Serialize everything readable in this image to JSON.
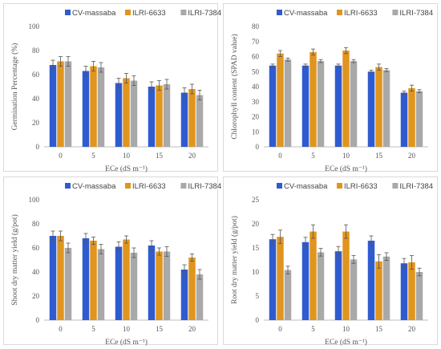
{
  "colors": {
    "CV-massaba": "#2f5bd0",
    "ILRI-6633": "#e0951e",
    "ILRI-7384": "#a9a9a9"
  },
  "chart_data": [
    {
      "type": "bar",
      "categories": [
        "0",
        "5",
        "10",
        "15",
        "20"
      ],
      "xlabel": "ECe (dS m⁻¹)",
      "ylabel": "Germination Percentage (%)",
      "ylim": [
        0,
        100
      ],
      "yticks": [
        0,
        20,
        40,
        60,
        80,
        100
      ],
      "series": [
        {
          "name": "CV-massaba",
          "values": [
            68,
            63,
            53,
            50,
            45
          ],
          "errors": [
            4,
            4,
            4,
            4,
            4
          ]
        },
        {
          "name": "ILRI-6633",
          "values": [
            71,
            67,
            57,
            51,
            48
          ],
          "errors": [
            4,
            4,
            4,
            4,
            4
          ]
        },
        {
          "name": "ILRI-7384",
          "values": [
            71,
            66,
            55,
            52,
            43
          ],
          "errors": [
            4,
            4,
            4,
            4,
            4
          ]
        }
      ]
    },
    {
      "type": "bar",
      "categories": [
        "0",
        "5",
        "10",
        "15",
        "20"
      ],
      "xlabel": "ECe (dS m⁻¹)",
      "ylabel": "Chlorophyll content (SPAD value)",
      "ylim": [
        0,
        80
      ],
      "yticks": [
        0,
        10,
        20,
        30,
        40,
        50,
        60,
        70,
        80
      ],
      "series": [
        {
          "name": "CV-massaba",
          "values": [
            54,
            54,
            54,
            50,
            36
          ],
          "errors": [
            1,
            1,
            1,
            1,
            1
          ]
        },
        {
          "name": "ILRI-6633",
          "values": [
            62,
            63,
            64,
            53,
            39
          ],
          "errors": [
            2,
            2,
            2,
            2,
            2
          ]
        },
        {
          "name": "ILRI-7384",
          "values": [
            58,
            57,
            57,
            51,
            37
          ],
          "errors": [
            1,
            1,
            1,
            1,
            1
          ]
        }
      ]
    },
    {
      "type": "bar",
      "categories": [
        "0",
        "5",
        "10",
        "15",
        "20"
      ],
      "xlabel": "ECe (dS m⁻¹)",
      "ylabel": "Shoot  dry matter yield (g/pot)",
      "ylim": [
        0,
        100
      ],
      "yticks": [
        0,
        20,
        40,
        60,
        80,
        100
      ],
      "series": [
        {
          "name": "CV-massaba",
          "values": [
            70,
            68,
            61,
            62,
            42
          ],
          "errors": [
            4,
            4,
            4,
            4,
            4
          ]
        },
        {
          "name": "ILRI-6633",
          "values": [
            70,
            66,
            67,
            57,
            52
          ],
          "errors": [
            4,
            3,
            3,
            3,
            3
          ]
        },
        {
          "name": "ILRI-7384",
          "values": [
            60,
            59,
            56,
            57,
            38
          ],
          "errors": [
            4,
            4,
            4,
            4,
            4
          ]
        }
      ]
    },
    {
      "type": "bar",
      "categories": [
        "0",
        "5",
        "10",
        "15",
        "20"
      ],
      "xlabel": "ECe (dS m⁻¹)",
      "ylabel": "Root dry matter yield (g/pot)",
      "ylim": [
        0,
        25
      ],
      "yticks": [
        0,
        5,
        10,
        15,
        20,
        25
      ],
      "series": [
        {
          "name": "CV-massaba",
          "values": [
            16.8,
            16.2,
            14.3,
            16.5,
            11.8
          ],
          "errors": [
            1.0,
            1.0,
            1.0,
            1.0,
            1.0
          ]
        },
        {
          "name": "ILRI-6633",
          "values": [
            17.3,
            18.4,
            18.4,
            12.2,
            12.0
          ],
          "errors": [
            1.4,
            1.4,
            1.4,
            1.4,
            1.4
          ]
        },
        {
          "name": "ILRI-7384",
          "values": [
            10.4,
            14.1,
            12.6,
            13.2,
            10.0
          ],
          "errors": [
            0.8,
            0.8,
            0.8,
            0.8,
            0.8
          ]
        }
      ]
    }
  ]
}
